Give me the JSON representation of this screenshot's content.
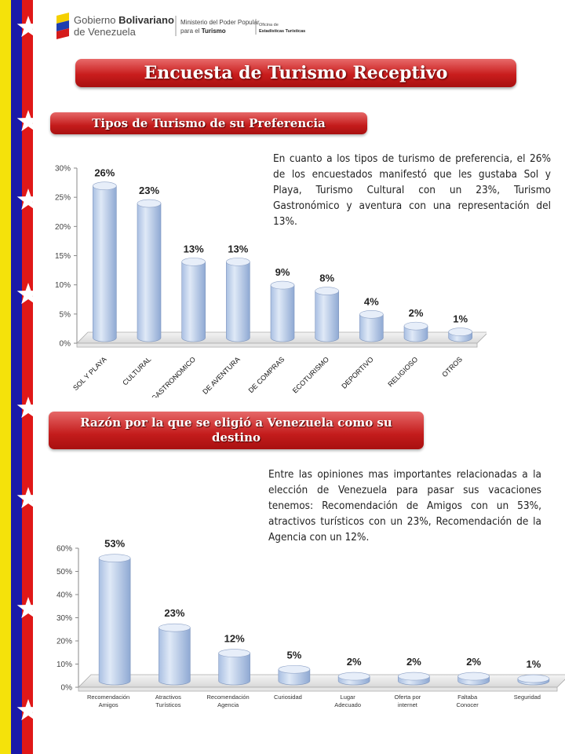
{
  "header": {
    "org_line1": "Gobierno",
    "org_line1_bold": "Bolivariano",
    "org_line2": "de Venezuela",
    "ministry_line1": "Ministerio del Poder Popular",
    "ministry_line2_prefix": "para el",
    "ministry_line2_bold": "Turismo",
    "office_line1": "Oficina de",
    "office_line2": "Estadísticas Turísticas"
  },
  "page_title": "Encuesta de Turismo Receptivo",
  "section1": {
    "title": "Tipos de Turismo de su Preferencia",
    "paragraph": "En cuanto a los tipos de turismo de preferencia, el 26% de los encuestados manifestó que les gustaba Sol y Playa, Turismo Cultural con un 23%, Turismo Gastronómico y aventura con una representación del 13%."
  },
  "section2": {
    "title_line1": "Razón por la que se eligió a Venezuela como su",
    "title_line2": "destino",
    "paragraph": "Entre las opiniones mas importantes relacionadas a la elección de Venezuela para pasar sus vacaciones tenemos: Recomendación de Amigos con un 53%, atractivos turísticos con un 23%, Recomendación de la Agencia con un 12%."
  },
  "colors": {
    "bar_light": "#dfe9f7",
    "bar_dark": "#8fa9d3",
    "pill_red": "#c41c1c",
    "flag_yellow": "#f5e20a",
    "flag_blue": "#1a1aa8",
    "flag_red": "#e01818"
  },
  "chart_data": [
    {
      "type": "bar",
      "categories": [
        "SOL Y PLAYA",
        "CULTURAL",
        "GASTRONOMICO",
        "DE AVENTURA",
        "DE COMPRAS",
        "ECOTURISMO",
        "DEPORTIVO",
        "RELIGIOSO",
        "OTROS"
      ],
      "values": [
        26,
        23,
        13,
        13,
        9,
        8,
        4,
        2,
        1
      ],
      "data_labels": [
        "26%",
        "23%",
        "13%",
        "13%",
        "9%",
        "8%",
        "4%",
        "2%",
        "1%"
      ],
      "yticks": [
        "0%",
        "5%",
        "10%",
        "15%",
        "20%",
        "25%",
        "30%"
      ],
      "ylim": [
        0,
        30
      ],
      "grid": false,
      "legend": false
    },
    {
      "type": "bar",
      "categories": [
        [
          "Recomendación",
          "Amigos"
        ],
        [
          "Atractivos",
          "Turísticos"
        ],
        [
          "Recomendación",
          "Agencia"
        ],
        [
          "Curiosidad"
        ],
        [
          "Lugar",
          "Adecuado"
        ],
        [
          "Oferta por",
          "internet"
        ],
        [
          "Faltaba",
          "Conocer"
        ],
        [
          "Seguridad"
        ]
      ],
      "values": [
        53,
        23,
        12,
        5,
        2,
        2,
        2,
        1
      ],
      "data_labels": [
        "53%",
        "23%",
        "12%",
        "5%",
        "2%",
        "2%",
        "2%",
        "1%"
      ],
      "yticks": [
        "0%",
        "10%",
        "20%",
        "30%",
        "40%",
        "50%",
        "60%"
      ],
      "ylim": [
        0,
        60
      ],
      "grid": false,
      "legend": false
    }
  ]
}
